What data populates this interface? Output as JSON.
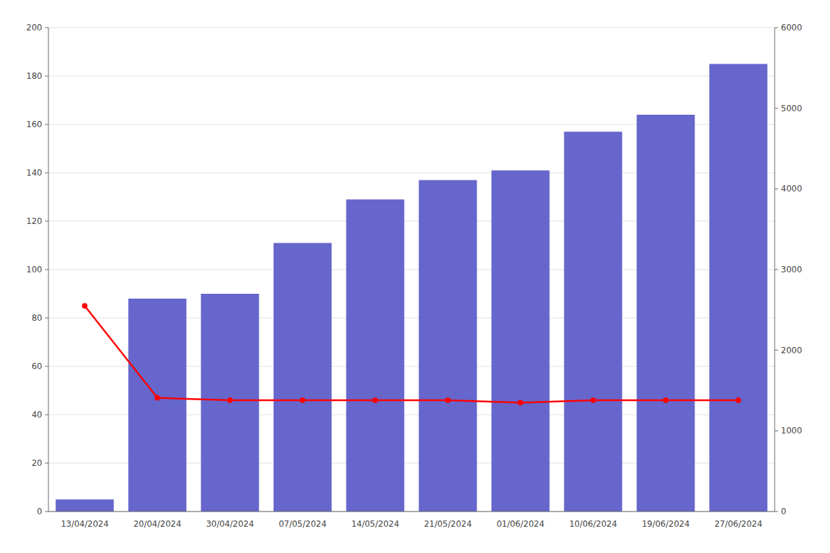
{
  "chart_data": {
    "type": "bar",
    "categories": [
      "13/04/2024",
      "20/04/2024",
      "30/04/2024",
      "07/05/2024",
      "14/05/2024",
      "21/05/2024",
      "01/06/2024",
      "10/06/2024",
      "19/06/2024",
      "27/06/2024"
    ],
    "series": [
      {
        "type": "bar",
        "color": "#6666CC",
        "values": [
          5,
          88,
          90,
          111,
          129,
          137,
          141,
          157,
          164,
          185
        ]
      },
      {
        "type": "line",
        "color": "#FF0000",
        "marker": "circle",
        "values": [
          85,
          47,
          46,
          46,
          46,
          46,
          45,
          46,
          46,
          46
        ]
      }
    ],
    "ylim": [
      0,
      200
    ],
    "yticks": [
      0,
      20,
      40,
      60,
      80,
      100,
      120,
      140,
      160,
      180,
      200
    ],
    "y2lim": [
      0,
      6000
    ],
    "y2ticks": [
      0,
      1000,
      2000,
      3000,
      4000,
      5000,
      6000
    ],
    "grid": true
  }
}
